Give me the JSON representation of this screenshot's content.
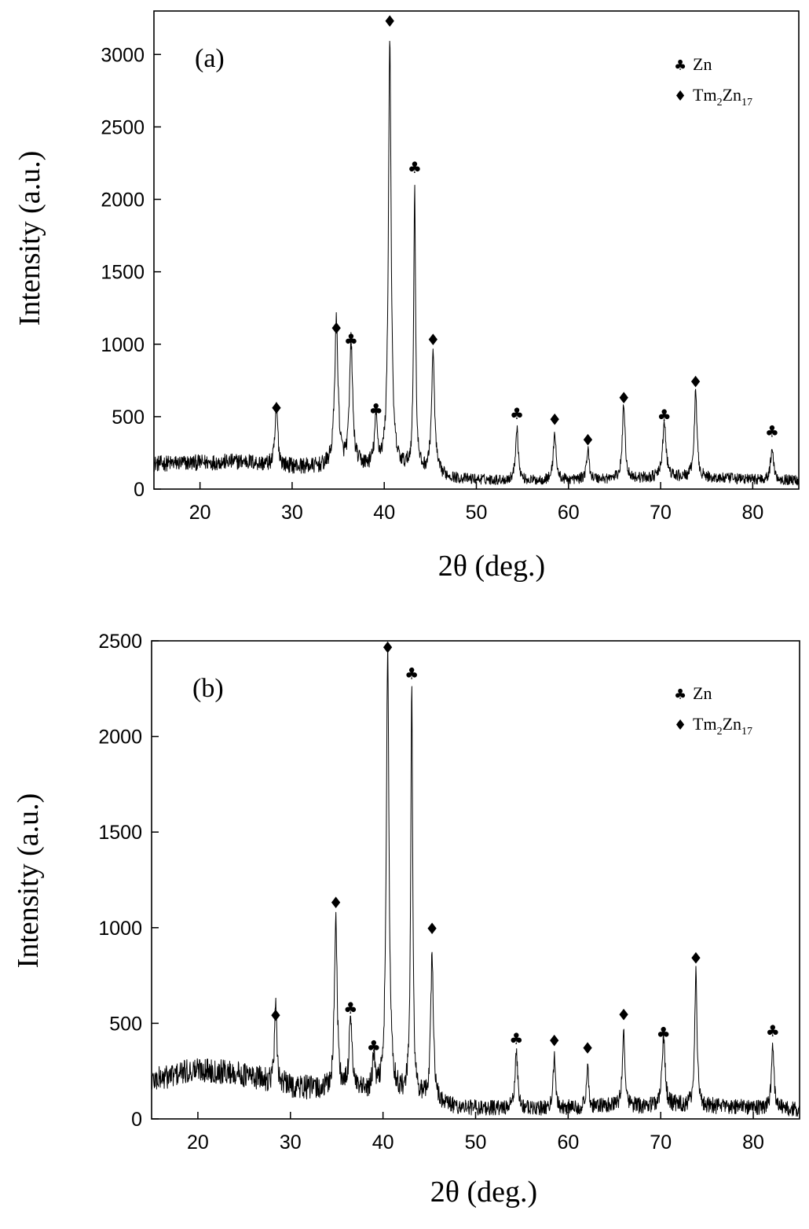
{
  "symbols": {
    "zn": "♣",
    "tm2zn17": "♦"
  },
  "chart_data": [
    {
      "type": "line",
      "panel_label": "(a)",
      "xlabel": "2θ  (deg.)",
      "ylabel": "Intensity (a.u.)",
      "xlim": [
        15,
        85
      ],
      "ylim": [
        0,
        3300
      ],
      "xticks": [
        20,
        30,
        40,
        50,
        60,
        70,
        80
      ],
      "yticks": [
        0,
        500,
        1000,
        1500,
        2000,
        2500,
        3000
      ],
      "legend": {
        "position": "top-right",
        "entries": [
          {
            "symbol": "zn",
            "label": "Zn"
          },
          {
            "symbol": "tm2zn17",
            "label_main": "Tm",
            "sub1": "2",
            "label_mid": "Zn",
            "sub2": "17"
          }
        ]
      },
      "background": [
        [
          15,
          175
        ],
        [
          25,
          190
        ],
        [
          28,
          160
        ],
        [
          33,
          150
        ],
        [
          37,
          155
        ],
        [
          41,
          150
        ],
        [
          48,
          70
        ],
        [
          55,
          55
        ],
        [
          65,
          70
        ],
        [
          72,
          80
        ],
        [
          85,
          60
        ]
      ],
      "noise_amplitude": 55,
      "peaks": [
        {
          "x": 28.3,
          "height": 420,
          "width": 0.35,
          "phase": "tm2zn17",
          "marker_y": 560
        },
        {
          "x": 34.8,
          "height": 1000,
          "width": 0.45,
          "phase": "tm2zn17",
          "marker_y": 1110
        },
        {
          "x": 36.4,
          "height": 850,
          "width": 0.4,
          "phase": "zn",
          "marker_y": 1030
        },
        {
          "x": 39.1,
          "height": 330,
          "width": 0.35,
          "phase": "zn",
          "marker_y": 550
        },
        {
          "x": 40.6,
          "height": 2950,
          "width": 0.35,
          "phase": "tm2zn17",
          "marker_y": 3230
        },
        {
          "x": 43.3,
          "height": 1950,
          "width": 0.25,
          "phase": "zn",
          "marker_y": 2220
        },
        {
          "x": 45.3,
          "height": 820,
          "width": 0.4,
          "phase": "tm2zn17",
          "marker_y": 1030
        },
        {
          "x": 54.4,
          "height": 370,
          "width": 0.35,
          "phase": "zn",
          "marker_y": 520
        },
        {
          "x": 58.5,
          "height": 330,
          "width": 0.35,
          "phase": "tm2zn17",
          "marker_y": 480
        },
        {
          "x": 62.1,
          "height": 200,
          "width": 0.35,
          "phase": "tm2zn17",
          "marker_y": 340
        },
        {
          "x": 66.0,
          "height": 520,
          "width": 0.35,
          "phase": "tm2zn17",
          "marker_y": 630
        },
        {
          "x": 70.4,
          "height": 370,
          "width": 0.45,
          "phase": "zn",
          "marker_y": 510
        },
        {
          "x": 73.8,
          "height": 590,
          "width": 0.35,
          "phase": "tm2zn17",
          "marker_y": 740
        },
        {
          "x": 82.1,
          "height": 230,
          "width": 0.35,
          "phase": "zn",
          "marker_y": 400
        }
      ]
    },
    {
      "type": "line",
      "panel_label": "(b)",
      "xlabel": "2θ  (deg.)",
      "ylabel": "Intensity (a.u.)",
      "xlim": [
        15,
        85
      ],
      "ylim": [
        0,
        2500
      ],
      "xticks": [
        20,
        30,
        40,
        50,
        60,
        70,
        80
      ],
      "yticks": [
        0,
        500,
        1000,
        1500,
        2000,
        2500
      ],
      "legend": {
        "position": "top-right",
        "entries": [
          {
            "symbol": "zn",
            "label": "Zn"
          },
          {
            "symbol": "tm2zn17",
            "label_main": "Tm",
            "sub1": "2",
            "label_mid": "Zn",
            "sub2": "17"
          }
        ]
      },
      "background": [
        [
          15,
          200
        ],
        [
          20,
          260
        ],
        [
          24,
          240
        ],
        [
          30,
          170
        ],
        [
          35,
          140
        ],
        [
          41,
          130
        ],
        [
          48,
          60
        ],
        [
          55,
          50
        ],
        [
          65,
          65
        ],
        [
          72,
          70
        ],
        [
          85,
          50
        ]
      ],
      "noise_amplitude": 65,
      "peaks": [
        {
          "x": 28.4,
          "height": 390,
          "width": 0.3,
          "phase": "tm2zn17",
          "marker_y": 540
        },
        {
          "x": 34.9,
          "height": 930,
          "width": 0.35,
          "phase": "tm2zn17",
          "marker_y": 1130
        },
        {
          "x": 36.5,
          "height": 420,
          "width": 0.35,
          "phase": "zn",
          "marker_y": 580
        },
        {
          "x": 39.0,
          "height": 180,
          "width": 0.3,
          "phase": "zn",
          "marker_y": 380
        },
        {
          "x": 40.5,
          "height": 2300,
          "width": 0.35,
          "phase": "tm2zn17",
          "marker_y": 2465
        },
        {
          "x": 43.1,
          "height": 2150,
          "width": 0.25,
          "phase": "zn",
          "marker_y": 2330
        },
        {
          "x": 45.3,
          "height": 760,
          "width": 0.35,
          "phase": "tm2zn17",
          "marker_y": 995
        },
        {
          "x": 54.4,
          "height": 300,
          "width": 0.35,
          "phase": "zn",
          "marker_y": 420
        },
        {
          "x": 58.5,
          "height": 260,
          "width": 0.3,
          "phase": "tm2zn17",
          "marker_y": 410
        },
        {
          "x": 62.1,
          "height": 190,
          "width": 0.3,
          "phase": "tm2zn17",
          "marker_y": 370
        },
        {
          "x": 66.0,
          "height": 420,
          "width": 0.3,
          "phase": "tm2zn17",
          "marker_y": 545
        },
        {
          "x": 70.3,
          "height": 350,
          "width": 0.4,
          "phase": "zn",
          "marker_y": 450
        },
        {
          "x": 73.8,
          "height": 700,
          "width": 0.3,
          "phase": "tm2zn17",
          "marker_y": 840
        },
        {
          "x": 82.1,
          "height": 350,
          "width": 0.3,
          "phase": "zn",
          "marker_y": 460
        }
      ]
    }
  ]
}
